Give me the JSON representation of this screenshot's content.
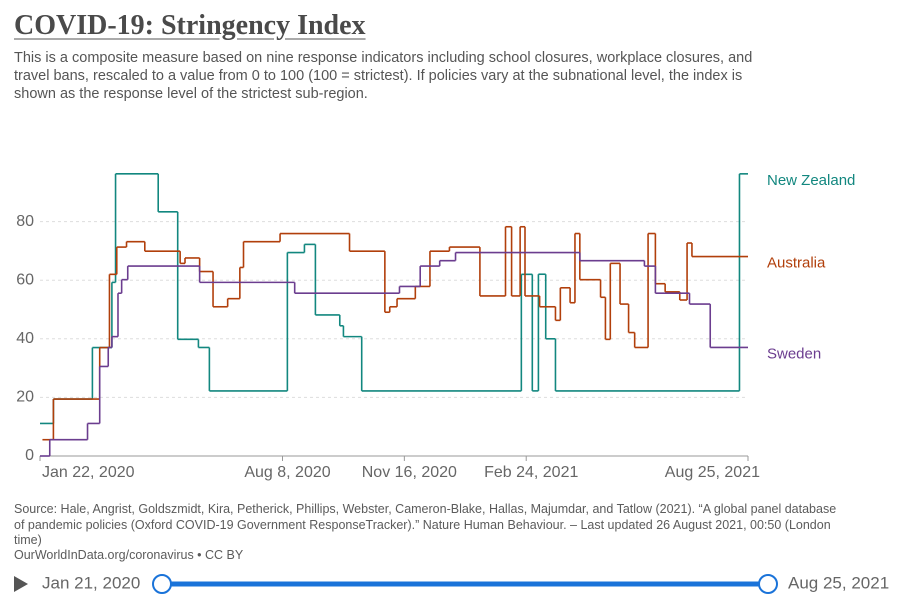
{
  "chart_data": {
    "type": "line",
    "title": "COVID-19: Stringency Index",
    "subtitle": "This is a composite measure based on nine response indicators including school closures, workplace closures, and travel bans, rescaled to a value from 0 to 100 (100 = strictest). If policies vary at the subnational level, the index is shown as the response level of the strictest sub-region.",
    "source": "Source: Hale, Angrist, Goldszmidt, Kira, Petherick, Phillips, Webster, Cameron-Blake, Hallas, Majumdar, and Tatlow (2021). “A global panel database of pandemic policies (Oxford COVID-19 Government ResponseTracker).” Nature Human Behaviour. – Last updated 26 August 2021, 00:50 (London time)",
    "url": "OurWorldInData.org/coronavirus • CC BY",
    "xlim": [
      "2020-01-22",
      "2021-08-25"
    ],
    "xticks": [
      {
        "value": "2020-01-22",
        "label": "Jan 22, 2020"
      },
      {
        "value": "2020-08-08",
        "label": "Aug 8, 2020"
      },
      {
        "value": "2020-11-16",
        "label": "Nov 16, 2020"
      },
      {
        "value": "2021-02-24",
        "label": "Feb 24, 2021"
      },
      {
        "value": "2021-08-25",
        "label": "Aug 25, 2021"
      }
    ],
    "ylim": [
      0,
      100
    ],
    "yticks": [
      0,
      20,
      40,
      60,
      80
    ],
    "grid": true,
    "step": true,
    "series": [
      {
        "name": "New Zealand",
        "color": "#12877f",
        "x": [
          "2020-01-22",
          "2020-02-02",
          "2020-03-05",
          "2020-03-21",
          "2020-03-24",
          "2020-04-28",
          "2020-05-14",
          "2020-05-31",
          "2020-06-09",
          "2020-08-12",
          "2020-08-26",
          "2020-09-04",
          "2020-09-24",
          "2020-09-27",
          "2020-10-12",
          "2021-02-20",
          "2021-03-01",
          "2021-03-06",
          "2021-03-12",
          "2021-03-20",
          "2021-08-18",
          "2021-08-25"
        ],
        "values": [
          11.11,
          19.44,
          37,
          59.26,
          96.3,
          83.33,
          39.81,
          37.04,
          22.22,
          69.44,
          72.22,
          48.15,
          44.44,
          40.74,
          22.22,
          62,
          22.22,
          62.04,
          40,
          22.22,
          96.3,
          96.3
        ]
      },
      {
        "name": "Australia",
        "color": "#b13f0b",
        "x": [
          "2020-01-24",
          "2020-02-02",
          "2020-03-11",
          "2020-03-19",
          "2020-03-25",
          "2020-04-02",
          "2020-04-17",
          "2020-05-16",
          "2020-05-20",
          "2020-06-01",
          "2020-06-12",
          "2020-06-24",
          "2020-07-04",
          "2020-07-07",
          "2020-08-06",
          "2020-10-02",
          "2020-10-31",
          "2020-11-04",
          "2020-11-10",
          "2020-11-25",
          "2020-12-07",
          "2020-12-23",
          "2021-01-17",
          "2021-02-07",
          "2021-02-12",
          "2021-02-19",
          "2021-02-23",
          "2021-03-07",
          "2021-03-20",
          "2021-03-24",
          "2021-04-01",
          "2021-04-05",
          "2021-04-09",
          "2021-04-26",
          "2021-04-30",
          "2021-05-04",
          "2021-05-12",
          "2021-05-19",
          "2021-05-24",
          "2021-06-04",
          "2021-06-10",
          "2021-06-18",
          "2021-06-30",
          "2021-07-06",
          "2021-07-10",
          "2021-08-25"
        ],
        "values": [
          5.56,
          19.44,
          37,
          62,
          71.3,
          73.15,
          69.91,
          65.74,
          67.59,
          62.96,
          50.93,
          53.7,
          64.35,
          73.15,
          75.93,
          69.91,
          49.07,
          50.93,
          53.7,
          57.87,
          69.91,
          71.3,
          54.63,
          78.24,
          54.63,
          78.24,
          54.63,
          50.93,
          46.3,
          57.41,
          52.31,
          75.93,
          60.19,
          54.17,
          39.81,
          65.74,
          51.85,
          42.13,
          37.04,
          75.93,
          58.8,
          56.02,
          53.24,
          72.69,
          68.06,
          68.06
        ]
      },
      {
        "name": "Sweden",
        "color": "#6b3d8f",
        "x": [
          "2020-01-22",
          "2020-01-30",
          "2020-03-01",
          "2020-03-11",
          "2020-03-18",
          "2020-03-21",
          "2020-03-26",
          "2020-03-29",
          "2020-04-03",
          "2020-06-01",
          "2020-08-18",
          "2020-11-12",
          "2020-11-29",
          "2020-12-15",
          "2020-12-28",
          "2021-04-09",
          "2021-06-01",
          "2021-06-10",
          "2021-07-08",
          "2021-07-25",
          "2021-08-25"
        ],
        "values": [
          0,
          5.56,
          11.11,
          30.56,
          37.04,
          40.74,
          55.56,
          60.19,
          64.81,
          59.26,
          55.56,
          57.87,
          64.81,
          66.67,
          69.44,
          66.67,
          64.81,
          55.56,
          51.85,
          37.04,
          37.04
        ]
      }
    ]
  },
  "timeline": {
    "start": "Jan 21, 2020",
    "end": "Aug 25, 2021"
  }
}
